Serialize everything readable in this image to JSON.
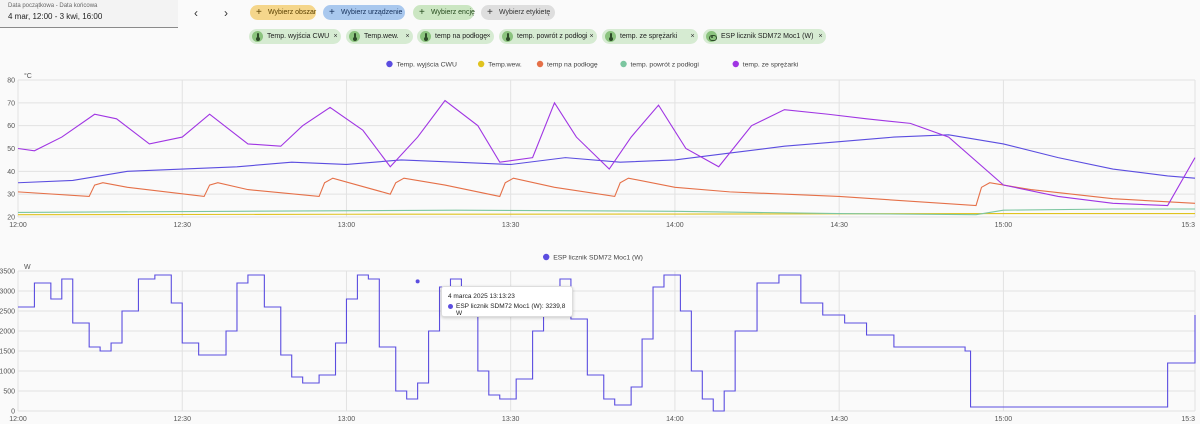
{
  "date_range": {
    "label": "Data początkowa - Data końcowa",
    "value": "4 mar, 12:00 - 3 kwi, 16:00"
  },
  "nav": {
    "prev": "‹",
    "next": "›"
  },
  "targets": [
    {
      "label": "Wybierz obszar",
      "bg": "#f5d68b",
      "fg": "#5a4000"
    },
    {
      "label": "Wybierz urządzenie",
      "bg": "#a9c8ee",
      "fg": "#16305a"
    },
    {
      "label": "Wybierz encję",
      "bg": "#cbe6c2",
      "fg": "#244a1c"
    },
    {
      "label": "Wybierz etykietę",
      "bg": "#dedede",
      "fg": "#333333"
    }
  ],
  "chips": [
    {
      "label": "Temp. wyjścia CWU",
      "icon": "thermometer-icon"
    },
    {
      "label": "Temp.wew.",
      "icon": "thermometer-icon"
    },
    {
      "label": "temp na podłogę",
      "icon": "thermometer-icon"
    },
    {
      "label": "temp. powrót z podłogi",
      "icon": "thermometer-icon"
    },
    {
      "label": "temp. ze sprężarki",
      "icon": "thermometer-icon"
    },
    {
      "label": "ESP licznik SDM72 Moc1 (W)",
      "icon": "eye-icon"
    }
  ],
  "chip_close": "×",
  "chart_data": [
    {
      "type": "line",
      "yunit": "°C",
      "ylim": [
        20,
        80
      ],
      "yticks": [
        20,
        30,
        40,
        50,
        60,
        70,
        80
      ],
      "x_range": [
        "12:00",
        "15:35"
      ],
      "xticks": [
        "12:00",
        "12:30",
        "13:00",
        "13:30",
        "14:00",
        "14:30",
        "15:00",
        "15:3"
      ],
      "grid": true,
      "legend_position": "top",
      "series": [
        {
          "name": "Temp. wyjścia CWU",
          "color": "#5b4de0",
          "x": [
            0,
            10,
            20,
            30,
            40,
            50,
            60,
            70,
            80,
            90,
            100,
            110,
            120,
            130,
            140,
            150,
            160,
            170,
            180,
            190,
            200,
            210,
            215
          ],
          "y": [
            35,
            36,
            40,
            41,
            42,
            44,
            43,
            45,
            44,
            43,
            46,
            44,
            45,
            48,
            51,
            53,
            55,
            56,
            52,
            46,
            41,
            38,
            37
          ]
        },
        {
          "name": "Temp.wew.",
          "color": "#e0c31f",
          "x": [
            0,
            60,
            120,
            180,
            215
          ],
          "y": [
            21,
            21.2,
            21.3,
            21.5,
            21.5
          ]
        },
        {
          "name": "temp na podłogę",
          "color": "#e57048",
          "x": [
            0,
            13,
            14,
            15.5,
            20,
            34,
            35,
            36.5,
            42,
            55,
            56,
            57.5,
            62,
            68,
            69,
            70.5,
            78,
            88,
            89,
            90.5,
            98,
            109,
            110,
            111.5,
            120,
            130,
            150,
            175,
            176,
            177.5,
            185,
            200,
            215
          ],
          "y": [
            31,
            29,
            34,
            35,
            33,
            29,
            34,
            35,
            32,
            29,
            35,
            37,
            34,
            30,
            35,
            37,
            34,
            29,
            35,
            37,
            33,
            29,
            35,
            37,
            33,
            31,
            29,
            25,
            33,
            35,
            32,
            28,
            26
          ]
        },
        {
          "name": "temp. powrót z podłogi",
          "color": "#7cc6a0",
          "x": [
            0,
            40,
            80,
            120,
            150,
            175,
            180,
            200,
            215
          ],
          "y": [
            22,
            22.5,
            23,
            22.5,
            21.5,
            21,
            23,
            23.5,
            23.5
          ]
        },
        {
          "name": "temp. ze sprężarki",
          "color": "#a035e3",
          "x": [
            0,
            3,
            8,
            14,
            18,
            24,
            30,
            35,
            42,
            48,
            52,
            57,
            63,
            68,
            73,
            78,
            84,
            88,
            94,
            98,
            102,
            108,
            112,
            117,
            122,
            128,
            134,
            140,
            148,
            155,
            163,
            170,
            180,
            190,
            200,
            210,
            215
          ],
          "y": [
            50,
            49,
            55,
            65,
            63,
            52,
            55,
            65,
            52,
            51,
            60,
            68,
            58,
            42,
            55,
            71,
            60,
            44,
            46,
            70,
            55,
            41,
            55,
            69,
            50,
            42,
            60,
            67,
            65,
            63,
            61,
            55,
            34,
            29,
            26,
            25,
            46
          ]
        }
      ]
    },
    {
      "type": "line",
      "yunit": "W",
      "ylim": [
        0,
        3500
      ],
      "yticks": [
        0,
        500,
        1000,
        1500,
        2000,
        2500,
        3000,
        3500
      ],
      "x_range": [
        "12:00",
        "15:35"
      ],
      "xticks": [
        "12:00",
        "12:30",
        "13:00",
        "13:30",
        "14:00",
        "14:30",
        "15:00",
        "15:3"
      ],
      "grid": true,
      "legend_position": "top",
      "series": [
        {
          "name": "ESP licznik SDM72 Moc1 (W)",
          "color": "#5b4de0",
          "x": [
            0,
            3,
            6,
            8,
            10,
            13,
            15,
            17,
            19,
            22,
            25,
            28,
            30,
            33,
            36,
            38,
            40,
            42,
            45,
            48,
            50,
            52,
            55,
            58,
            60,
            62,
            64,
            66,
            69,
            71,
            73,
            75,
            77,
            79,
            81,
            84,
            86,
            88,
            91,
            94,
            96,
            99,
            101,
            104,
            107,
            109,
            112,
            114,
            116,
            118,
            121,
            123,
            125,
            127,
            129,
            131,
            135,
            139,
            143,
            147,
            151,
            155,
            160,
            173,
            174,
            185,
            198,
            203,
            210,
            215
          ],
          "y": [
            2600,
            3200,
            2800,
            3300,
            2200,
            1600,
            1500,
            1700,
            2500,
            3300,
            3400,
            2700,
            1700,
            1400,
            1400,
            2000,
            3200,
            3400,
            2600,
            1400,
            850,
            700,
            900,
            1700,
            2800,
            3400,
            3300,
            1600,
            500,
            300,
            700,
            2000,
            3100,
            3300,
            2500,
            1000,
            400,
            300,
            800,
            2000,
            3000,
            3300,
            2300,
            900,
            300,
            150,
            600,
            1800,
            3100,
            3400,
            2500,
            1000,
            300,
            0,
            500,
            2000,
            3200,
            3400,
            2700,
            2400,
            2200,
            1900,
            1600,
            1500,
            100,
            100,
            100,
            100,
            1200,
            2400
          ]
        }
      ],
      "tooltip": {
        "date": "4 marca 2025 13:13:23",
        "series": "ESP licznik SDM72 Moc1 (W)",
        "value": "3239,8 W"
      }
    }
  ]
}
